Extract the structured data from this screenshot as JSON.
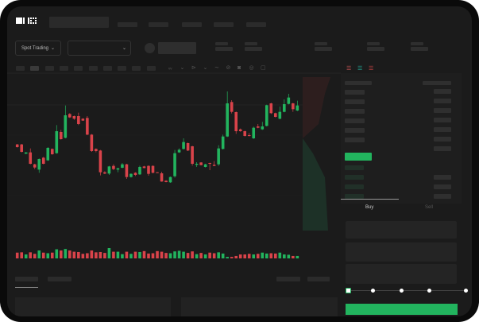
{
  "header": {
    "logo": "OKX",
    "nav_count": 5
  },
  "toolbar": {
    "market_type": "Spot Trading",
    "pair_selector": ""
  },
  "chart": {
    "colors": {
      "up": "#22b45e",
      "down": "#d9434a",
      "up_area": "#1e3a2c",
      "down_area": "#3a2222"
    },
    "candles": [
      [
        185,
        187,
        173,
        175
      ],
      [
        185,
        187,
        155,
        157
      ],
      [
        150,
        156,
        149,
        155
      ],
      [
        155,
        170,
        110,
        112
      ],
      [
        110,
        112,
        92,
        98
      ],
      [
        90,
        132,
        78,
        130
      ],
      [
        135,
        138,
        110,
        112
      ],
      [
        125,
        175,
        123,
        172
      ],
      [
        168,
        170,
        146,
        148
      ],
      [
        152,
        258,
        150,
        235
      ],
      [
        232,
        240,
        203,
        205
      ],
      [
        210,
        332,
        208,
        295
      ],
      [
        300,
        303,
        285,
        287
      ],
      [
        292,
        294,
        278,
        282
      ],
      [
        292,
        305,
        258,
        262
      ],
      [
        282,
        284,
        274,
        275
      ],
      [
        285,
        292,
        220,
        222
      ],
      [
        222,
        224,
        157,
        160
      ],
      [
        168,
        170,
        155,
        160
      ],
      [
        162,
        164,
        68,
        80
      ],
      [
        80,
        84,
        73,
        75
      ],
      [
        75,
        104,
        70,
        102
      ],
      [
        104,
        110,
        88,
        92
      ],
      [
        90,
        97,
        80,
        95
      ],
      [
        97,
        115,
        95,
        110
      ],
      [
        110,
        112,
        55,
        62
      ],
      [
        62,
        76,
        60,
        74
      ],
      [
        78,
        80,
        66,
        70
      ],
      [
        72,
        105,
        70,
        100
      ],
      [
        102,
        104,
        95,
        96
      ],
      [
        104,
        106,
        67,
        74
      ],
      [
        104,
        106,
        76,
        78
      ],
      [
        80,
        81,
        77,
        78
      ],
      [
        76,
        82,
        44,
        45
      ],
      [
        48,
        50,
        42,
        43
      ],
      [
        42,
        64,
        40,
        62
      ],
      [
        65,
        164,
        60,
        152
      ],
      [
        155,
        170,
        153,
        165
      ],
      [
        168,
        208,
        166,
        194
      ],
      [
        190,
        192,
        160,
        162
      ],
      [
        178,
        180,
        105,
        112
      ],
      [
        108,
        118,
        100,
        112
      ],
      [
        117,
        118,
        106,
        107
      ],
      [
        100,
        112,
        98,
        110
      ],
      [
        115,
        116,
        88,
        113
      ],
      [
        108,
        122,
        103,
        104
      ],
      [
        110,
        182,
        104,
        170
      ],
      [
        168,
        222,
        166,
        215
      ],
      [
        215,
        385,
        213,
        340
      ],
      [
        345,
        352,
        302,
        308
      ],
      [
        307,
        309,
        225,
        235
      ],
      [
        242,
        245,
        233,
        235
      ],
      [
        235,
        237,
        215,
        217
      ],
      [
        220,
        228,
        215,
        217
      ],
      [
        208,
        252,
        206,
        248
      ],
      [
        253,
        262,
        246,
        248
      ],
      [
        242,
        270,
        240,
        253
      ],
      [
        255,
        335,
        253,
        333
      ],
      [
        340,
        342,
        300,
        303
      ],
      [
        303,
        305,
        287,
        289
      ],
      [
        282,
        328,
        280,
        308
      ],
      [
        308,
        355,
        306,
        337
      ],
      [
        338,
        376,
        336,
        362
      ],
      [
        340,
        342,
        308,
        318
      ],
      [
        313,
        350,
        311,
        332
      ]
    ],
    "volumes": [
      38,
      40,
      26,
      40,
      30,
      52,
      38,
      34,
      38,
      60,
      52,
      62,
      52,
      44,
      42,
      30,
      34,
      52,
      40,
      42,
      36,
      68,
      44,
      44,
      28,
      44,
      30,
      44,
      42,
      48,
      32,
      34,
      48,
      44,
      36,
      34,
      46,
      50,
      44,
      36,
      46,
      28,
      36,
      26,
      38,
      34,
      40,
      32,
      10,
      10,
      16,
      26,
      26,
      30,
      26,
      30,
      38,
      32,
      34,
      32,
      38,
      26,
      24,
      16,
      16
    ]
  },
  "orderbook": {
    "asks": 6,
    "bids": 4
  },
  "trade": {
    "tabs": [
      {
        "label": "Buy",
        "active": true
      },
      {
        "label": "Sell",
        "active": false
      }
    ],
    "slider_value": 0
  }
}
